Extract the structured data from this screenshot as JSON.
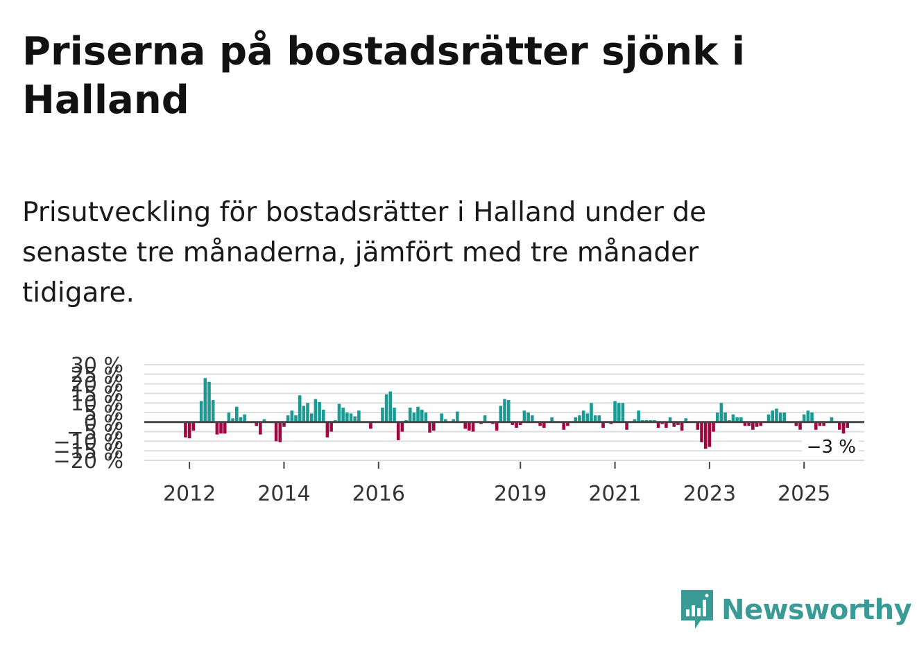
{
  "title": "Priserna på bostadsrätter sjönk i Halland",
  "subtitle": "Prisutveckling för bostadsrätter i Halland under de senaste tre månaderna, jämfört med tre månader tidigare.",
  "logo": {
    "text": "Newsworthy",
    "icon": "newsworthy-chart-icon"
  },
  "colors": {
    "positive": "#1a9a93",
    "negative": "#a0063f",
    "baseline": "#444444",
    "grid": "#dddddd",
    "logo": "#3a9a96"
  },
  "chart_data": {
    "type": "bar",
    "title": "",
    "xlabel": "",
    "ylabel": "",
    "ylim": [
      -20,
      30
    ],
    "y_ticks": [
      30,
      25,
      20,
      15,
      10,
      5,
      0,
      -5,
      -10,
      -15,
      -20
    ],
    "y_tick_labels": [
      "30 %",
      "25 %",
      "20 %",
      "15 %",
      "10 %",
      "5 %",
      "0 %",
      "−5 %",
      "−10 %",
      "−15 %",
      "−20 %"
    ],
    "x_tick_labels": [
      "2012",
      "2014",
      "2016",
      "2019",
      "2021",
      "2023",
      "2025"
    ],
    "x_tick_indices": [
      9,
      33,
      57,
      93,
      117,
      141,
      165
    ],
    "start": "2011-01",
    "last_value_label": "−3 %",
    "values": [
      0,
      0,
      0,
      0,
      0,
      0,
      0,
      0,
      -8,
      -8.5,
      -4.5,
      0,
      11,
      23,
      21,
      11.5,
      -6.5,
      -6,
      -6,
      5,
      2,
      8,
      2.5,
      4,
      0,
      0.5,
      -2,
      -6.5,
      1.5,
      0,
      -0.5,
      -10,
      -10.5,
      -2.5,
      3.5,
      6,
      3.5,
      14,
      8.5,
      10,
      4.5,
      12,
      10.5,
      6.5,
      -8,
      -5,
      1,
      9.5,
      7.5,
      5,
      4.5,
      3,
      6,
      0,
      0,
      -3.5,
      0,
      0,
      7.5,
      14.5,
      16,
      7.5,
      -9.5,
      -5,
      1,
      7.5,
      5,
      8,
      6.5,
      5,
      -5.5,
      -4.5,
      0,
      4.5,
      1.5,
      0,
      1.5,
      5.5,
      0,
      -3.5,
      -4.5,
      -5,
      0,
      -1,
      3.5,
      0,
      -1,
      -4.5,
      8.5,
      12,
      11.5,
      -1.5,
      -3,
      -1.5,
      6,
      5,
      3.5,
      0,
      -2,
      -3,
      0,
      2.5,
      0,
      0.5,
      -4,
      -2,
      0,
      2.5,
      3.5,
      6,
      4.5,
      10,
      3.5,
      3.5,
      -3,
      0,
      -1,
      11,
      10,
      10,
      -4,
      0,
      1.5,
      6,
      1,
      1,
      1,
      1,
      -3,
      -1,
      -3,
      2.5,
      -2.5,
      -1.5,
      -4.5,
      2,
      0,
      0,
      -4,
      -10.5,
      -14,
      -13,
      -5,
      5,
      10,
      5,
      1,
      4,
      2.5,
      2.5,
      -2,
      -2,
      -4,
      -2.5,
      -2,
      0,
      4,
      6,
      7,
      5,
      5,
      0,
      0,
      -2,
      -4,
      4,
      6,
      5,
      -4,
      -2,
      -2,
      0,
      2.5,
      0.5,
      -4,
      -6,
      -3
    ]
  }
}
